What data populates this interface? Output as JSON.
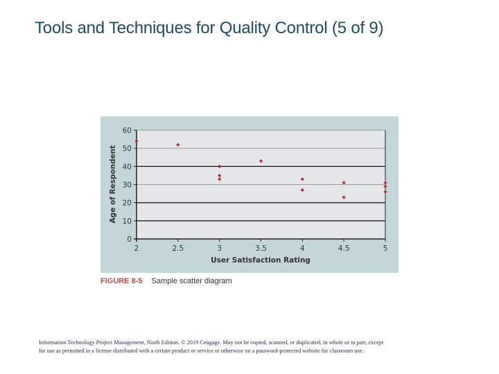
{
  "slide": {
    "title": "Tools and Techniques for Quality Control (5 of 9)"
  },
  "figure": {
    "number": "FIGURE 8-5",
    "description": "Sample scatter diagram"
  },
  "footer": {
    "line1": "Information Technology Project Management, Ninth Edition. © 2019 Cengage. May not be copied, scanned, or duplicated, in whole or in part, except",
    "line2": "for use as permitted in a license distributed with a certain product or service or otherwise on a password-protected website for classroom use."
  },
  "colors": {
    "title": "#1b4a66",
    "panel_bg": "#c3d6d9",
    "plot_bg": "#e4e6e8",
    "marker": "#b0283a",
    "figure_label": "#b0504a"
  },
  "chart_data": {
    "type": "scatter",
    "title": "",
    "xlabel": "User Satisfaction Rating",
    "ylabel": "Age of Respondent",
    "xlim": [
      2,
      5
    ],
    "ylim": [
      0,
      60
    ],
    "xticks": [
      "2",
      "2.5",
      "3",
      "3.5",
      "4",
      "4.5",
      "5"
    ],
    "yticks": [
      "0",
      "10",
      "20",
      "30",
      "40",
      "50",
      "60"
    ],
    "grid": true,
    "legend": null,
    "points": [
      {
        "x": 2,
        "y": 54
      },
      {
        "x": 2.5,
        "y": 52
      },
      {
        "x": 3,
        "y": 40
      },
      {
        "x": 3,
        "y": 35
      },
      {
        "x": 3,
        "y": 33
      },
      {
        "x": 3.5,
        "y": 43
      },
      {
        "x": 4,
        "y": 33
      },
      {
        "x": 4,
        "y": 27
      },
      {
        "x": 4.5,
        "y": 31
      },
      {
        "x": 4.5,
        "y": 23
      },
      {
        "x": 5,
        "y": 31
      },
      {
        "x": 5,
        "y": 29
      },
      {
        "x": 5,
        "y": 26
      }
    ]
  }
}
